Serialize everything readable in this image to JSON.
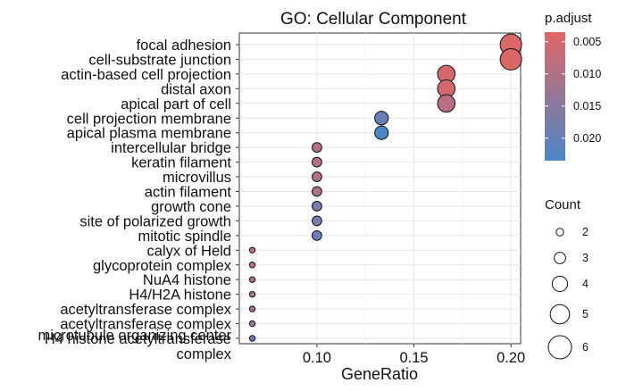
{
  "chart_data": {
    "type": "scatter",
    "title": "GO: Cellular Component",
    "xlabel": "GeneRatio",
    "ylabel": "",
    "xlim": [
      0.06,
      0.205
    ],
    "x_ticks": [
      "0.10",
      "0.15",
      "0.20"
    ],
    "x_tick_values": [
      0.1,
      0.15,
      0.2
    ],
    "grid": true,
    "legend_placement": "right",
    "color_legend": {
      "title": "p.adjust",
      "ticks": [
        "0.005",
        "0.010",
        "0.015",
        "0.020"
      ],
      "tick_values": [
        0.005,
        0.01,
        0.015,
        0.02
      ],
      "range": [
        0.0035,
        0.0235
      ],
      "low_color": "#e06666",
      "high_color": "#4a87c8"
    },
    "size_legend": {
      "title": "Count",
      "ticks": [
        "2",
        "3",
        "4",
        "5",
        "6"
      ],
      "values": [
        2,
        3,
        4,
        5,
        6
      ]
    },
    "points": [
      {
        "term": "focal adhesion",
        "x": 0.2,
        "count": 6,
        "p_adjust": 0.004
      },
      {
        "term": "cell-substrate junction",
        "x": 0.2,
        "count": 6,
        "p_adjust": 0.004
      },
      {
        "term": "actin-based cell projection",
        "x": 0.1667,
        "count": 5,
        "p_adjust": 0.005
      },
      {
        "term": "distal axon",
        "x": 0.1667,
        "count": 5,
        "p_adjust": 0.005
      },
      {
        "term": "apical part of cell",
        "x": 0.1667,
        "count": 5,
        "p_adjust": 0.008
      },
      {
        "term": "cell projection membrane",
        "x": 0.1333,
        "count": 4,
        "p_adjust": 0.019
      },
      {
        "term": "apical plasma membrane",
        "x": 0.1333,
        "count": 4,
        "p_adjust": 0.0235
      },
      {
        "term": "intercellular bridge",
        "x": 0.1,
        "count": 3,
        "p_adjust": 0.0085
      },
      {
        "term": "keratin filament",
        "x": 0.1,
        "count": 3,
        "p_adjust": 0.0085
      },
      {
        "term": "microvillus",
        "x": 0.1,
        "count": 3,
        "p_adjust": 0.009
      },
      {
        "term": "actin filament",
        "x": 0.1,
        "count": 3,
        "p_adjust": 0.0095
      },
      {
        "term": "growth cone",
        "x": 0.1,
        "count": 3,
        "p_adjust": 0.016
      },
      {
        "term": "site of polarized growth",
        "x": 0.1,
        "count": 3,
        "p_adjust": 0.0165
      },
      {
        "term": "mitotic spindle",
        "x": 0.1,
        "count": 3,
        "p_adjust": 0.0185
      },
      {
        "term": "calyx of Held",
        "x": 0.0667,
        "count": 2,
        "p_adjust": 0.008
      },
      {
        "term": "glycoprotein complex",
        "x": 0.0667,
        "count": 2,
        "p_adjust": 0.0085
      },
      {
        "term": "NuA4 histone",
        "x": 0.0667,
        "count": 2,
        "p_adjust": 0.01
      },
      {
        "term": "H4/H2A histone",
        "x": 0.0667,
        "count": 2,
        "p_adjust": 0.0105
      },
      {
        "term": "acetyltransferase complex",
        "x": 0.0667,
        "count": 2,
        "p_adjust": 0.011
      },
      {
        "term": "acetyltransferase complex",
        "x": 0.0667,
        "count": 2,
        "p_adjust": 0.012
      },
      {
        "term": "H4 histone acetyltransferase",
        "x": 0.0667,
        "count": 2,
        "p_adjust": 0.0175
      }
    ],
    "extra_labels": [
      "microtubule organizing center",
      "complex"
    ]
  }
}
